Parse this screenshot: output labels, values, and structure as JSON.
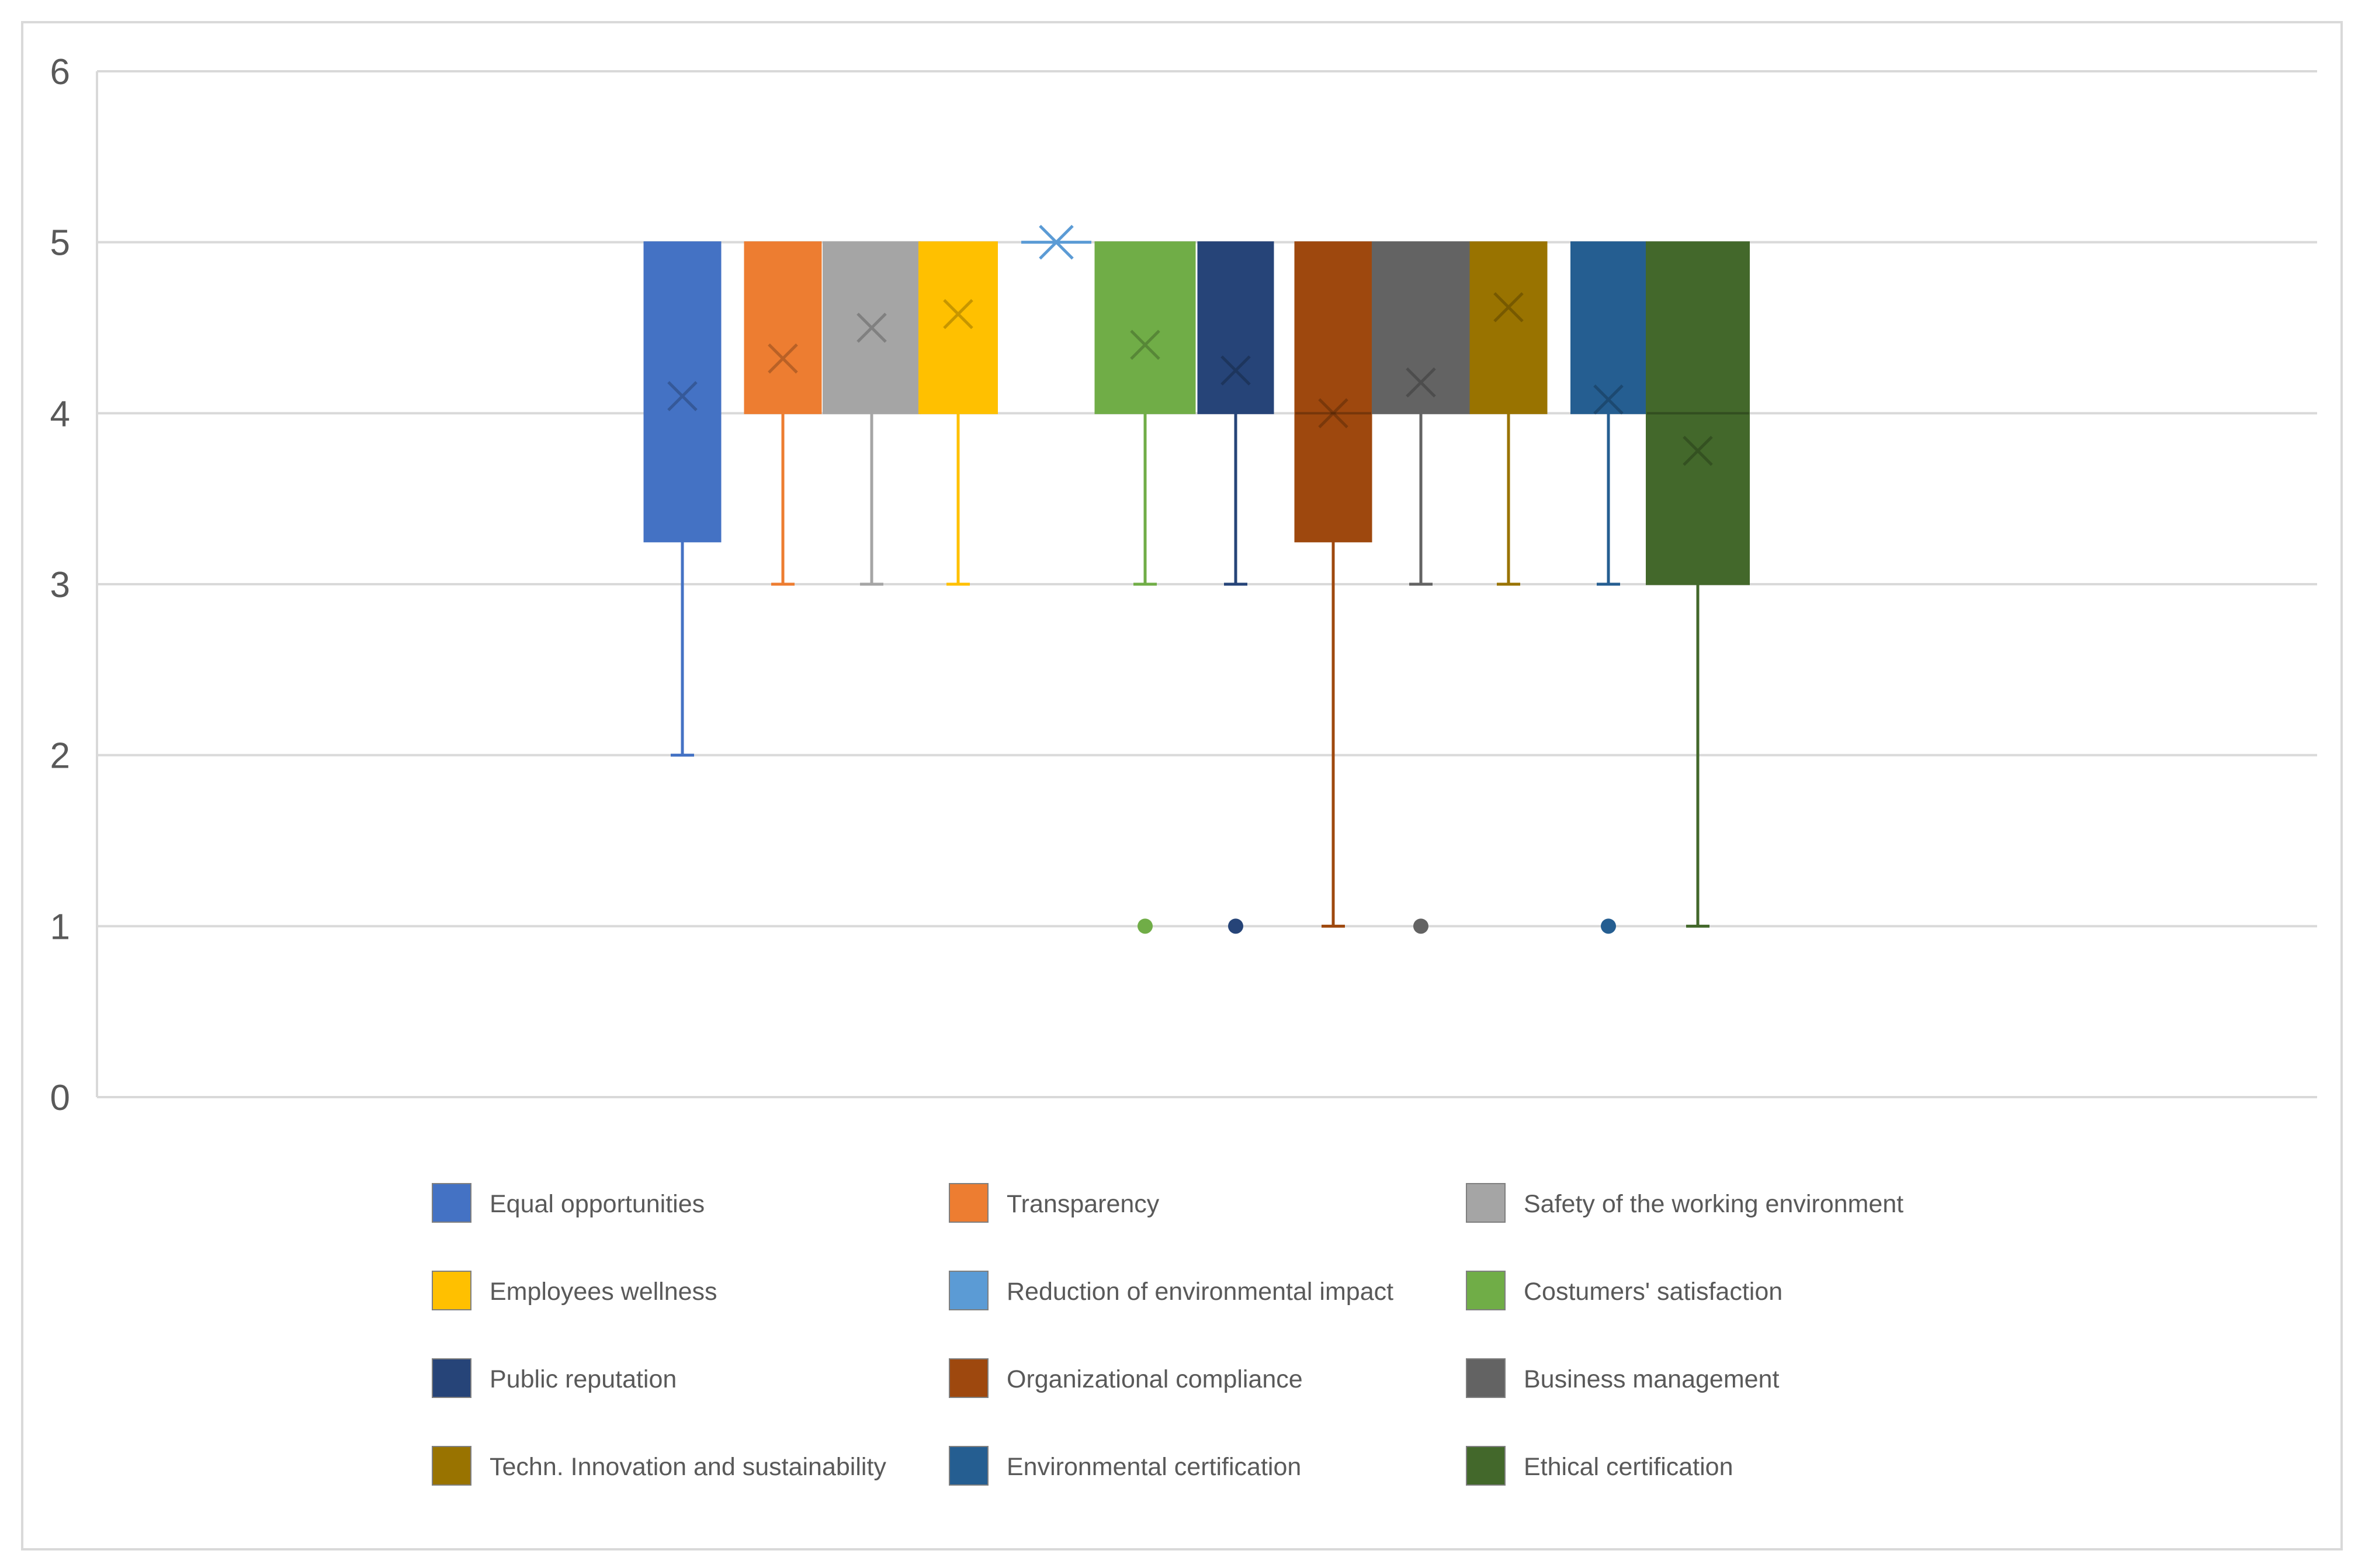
{
  "chart_data": {
    "type": "box",
    "title": "",
    "xlabel": "",
    "ylabel": "",
    "ylim": [
      0,
      6
    ],
    "yticks": [
      0,
      1,
      2,
      3,
      4,
      5,
      6
    ],
    "grid": true,
    "legend_position": "bottom",
    "series": [
      {
        "name": "Equal opportunities",
        "color": "#4472C4",
        "min": 2,
        "q1": 3.25,
        "median": 5,
        "q3": 5,
        "max": 5,
        "mean": 4.1,
        "outliers": []
      },
      {
        "name": "Transparency",
        "color": "#ED7D31",
        "min": 3,
        "q1": 4,
        "median": 5,
        "q3": 5,
        "max": 5,
        "mean": 4.32,
        "outliers": []
      },
      {
        "name": "Safety of the working environment",
        "color": "#A5A5A5",
        "min": 3,
        "q1": 4,
        "median": 5,
        "q3": 5,
        "max": 5,
        "mean": 4.5,
        "outliers": []
      },
      {
        "name": "Employees wellness",
        "color": "#FFC000",
        "min": 3,
        "q1": 4,
        "median": 5,
        "q3": 5,
        "max": 5,
        "mean": 4.58,
        "outliers": []
      },
      {
        "name": "Reduction of environmental impact",
        "color": "#5B9BD5",
        "min": 5,
        "q1": 5,
        "median": 5,
        "q3": 5,
        "max": 5,
        "mean": 5,
        "outliers": []
      },
      {
        "name": "Costumers' satisfaction",
        "color": "#70AD47",
        "min": 3,
        "q1": 4,
        "median": 5,
        "q3": 5,
        "max": 5,
        "mean": 4.4,
        "outliers": [
          1
        ]
      },
      {
        "name": "Public reputation",
        "color": "#264478",
        "min": 3,
        "q1": 4,
        "median": 5,
        "q3": 5,
        "max": 5,
        "mean": 4.25,
        "outliers": [
          1
        ]
      },
      {
        "name": "Organizational compliance",
        "color": "#9E480E",
        "min": 1,
        "q1": 3.25,
        "median": 4,
        "q3": 5,
        "max": 5,
        "mean": 4,
        "outliers": []
      },
      {
        "name": "Business management",
        "color": "#636363",
        "min": 3,
        "q1": 4,
        "median": 5,
        "q3": 5,
        "max": 5,
        "mean": 4.18,
        "outliers": [
          1
        ]
      },
      {
        "name": "Techn. Innovation and sustainability",
        "color": "#997300",
        "min": 3,
        "q1": 4,
        "median": 5,
        "q3": 5,
        "max": 5,
        "mean": 4.62,
        "outliers": []
      },
      {
        "name": "Environmental certification",
        "color": "#255E91",
        "min": 3,
        "q1": 4,
        "median": 5,
        "q3": 5,
        "max": 5,
        "mean": 4.08,
        "outliers": [
          1
        ]
      },
      {
        "name": "Ethical certification",
        "color": "#43682B",
        "min": 1,
        "q1": 3,
        "median": 4,
        "q3": 5,
        "max": 5,
        "mean": 3.78,
        "outliers": []
      }
    ]
  }
}
